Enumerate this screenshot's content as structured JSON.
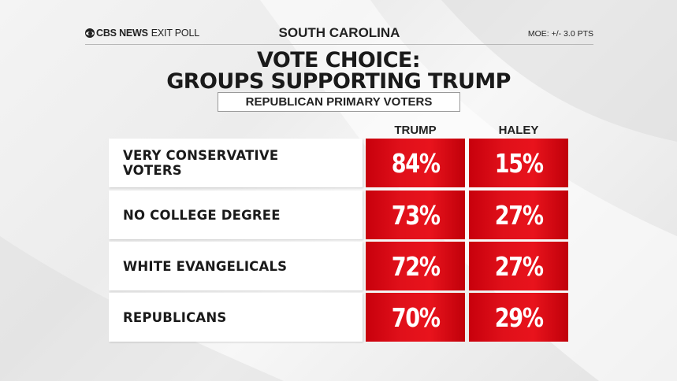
{
  "header": {
    "logo_brand": "CBS NEWS",
    "logo_suffix": "EXIT POLL",
    "state": "SOUTH CAROLINA",
    "moe": "MOE: +/- 3.0 PTS"
  },
  "title_line1": "VOTE CHOICE:",
  "title_line2": "GROUPS SUPPORTING TRUMP",
  "subtitle": "REPUBLICAN PRIMARY VOTERS",
  "colors": {
    "accent": "#e0101a",
    "text": "#1a1a1a"
  },
  "chart_data": {
    "type": "table",
    "title": "VOTE CHOICE: GROUPS SUPPORTING TRUMP",
    "subtitle": "REPUBLICAN PRIMARY VOTERS",
    "columns": [
      "TRUMP",
      "HALEY"
    ],
    "rows": [
      {
        "label": "VERY CONSERVATIVE VOTERS",
        "label_lines": [
          "VERY CONSERVATIVE",
          "VOTERS"
        ],
        "values": [
          "84%",
          "15%"
        ]
      },
      {
        "label": "NO COLLEGE DEGREE",
        "label_lines": [
          "NO COLLEGE DEGREE"
        ],
        "values": [
          "73%",
          "27%"
        ]
      },
      {
        "label": "WHITE EVANGELICALS",
        "label_lines": [
          "WHITE EVANGELICALS"
        ],
        "values": [
          "72%",
          "27%"
        ]
      },
      {
        "label": "REPUBLICANS",
        "label_lines": [
          "REPUBLICANS"
        ],
        "values": [
          "70%",
          "29%"
        ]
      }
    ]
  }
}
